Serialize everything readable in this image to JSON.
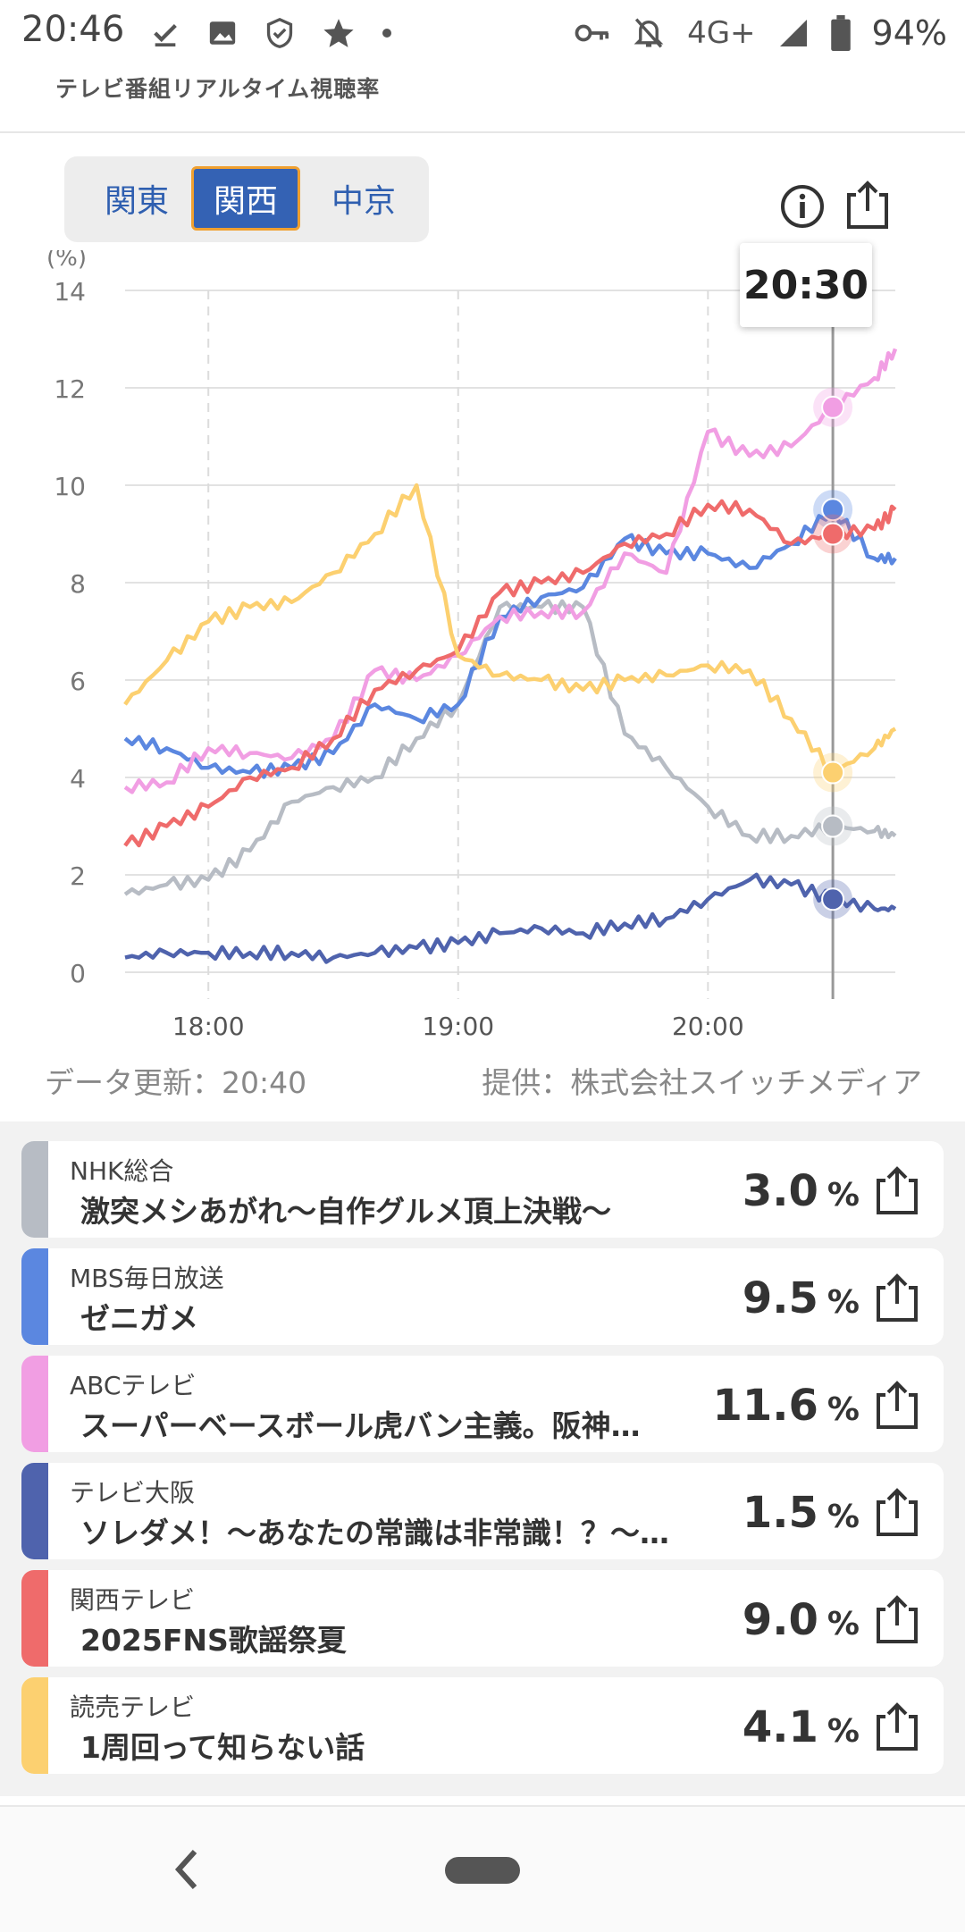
{
  "status_bar": {
    "time": "20:46",
    "network": "4G+",
    "battery": "94%",
    "left_icons": [
      "download-done-icon",
      "image-icon",
      "shield-check-icon",
      "star-icon",
      "dot-icon"
    ],
    "right_icons": [
      "vpn-key-icon",
      "notifications-off-icon",
      "signal-icon",
      "battery-icon"
    ]
  },
  "header": {
    "subtitle": "テレビ番組リアルタイム視聴率"
  },
  "region_tabs": [
    {
      "label": "関東",
      "active": false
    },
    {
      "label": "関西",
      "active": true
    },
    {
      "label": "中京",
      "active": false
    }
  ],
  "chart_tooltip": "20:30",
  "chart_data": {
    "type": "line",
    "ylabel": "(%)",
    "ylim": [
      0,
      14
    ],
    "yticks": [
      "0",
      "2",
      "4",
      "6",
      "8",
      "10",
      "12",
      "14"
    ],
    "xticks": [
      "18:00",
      "19:00",
      "20:00"
    ],
    "xlim": [
      "17:40",
      "20:45"
    ],
    "grid": true,
    "cursor_time": "20:30",
    "x": [
      "17:40",
      "17:50",
      "18:00",
      "18:10",
      "18:20",
      "18:30",
      "18:40",
      "18:50",
      "19:00",
      "19:10",
      "19:20",
      "19:30",
      "19:40",
      "19:50",
      "20:00",
      "20:10",
      "20:20",
      "20:30",
      "20:40",
      "20:45"
    ],
    "series": [
      {
        "name": "NHK総合",
        "color": "#b7bcc4",
        "values": [
          1.6,
          1.8,
          1.9,
          2.5,
          3.5,
          3.8,
          4.0,
          4.8,
          5.5,
          7.5,
          7.5,
          7.5,
          4.9,
          4.2,
          3.4,
          2.8,
          2.8,
          3.0,
          2.9,
          2.8
        ]
      },
      {
        "name": "MBS毎日放送",
        "color": "#5b87e0",
        "values": [
          4.8,
          4.6,
          4.2,
          4.1,
          4.2,
          4.5,
          5.5,
          5.2,
          5.5,
          7.3,
          7.7,
          7.9,
          8.9,
          8.6,
          8.6,
          8.3,
          8.8,
          9.5,
          8.5,
          8.5
        ]
      },
      {
        "name": "ABCテレビ",
        "color": "#f19ee3",
        "values": [
          3.8,
          3.9,
          4.6,
          4.5,
          4.4,
          4.8,
          6.2,
          6.0,
          6.5,
          7.3,
          7.4,
          7.4,
          8.6,
          8.2,
          11.1,
          10.6,
          10.8,
          11.6,
          12.2,
          12.8
        ]
      },
      {
        "name": "テレビ大阪",
        "color": "#4f63ad",
        "values": [
          0.3,
          0.4,
          0.4,
          0.4,
          0.4,
          0.3,
          0.4,
          0.5,
          0.6,
          0.8,
          0.9,
          0.8,
          1.0,
          1.1,
          1.5,
          1.9,
          1.8,
          1.5,
          1.3,
          1.3
        ]
      },
      {
        "name": "関西テレビ",
        "color": "#ef6b6b",
        "values": [
          2.6,
          3.0,
          3.4,
          4.0,
          4.2,
          4.8,
          5.8,
          6.2,
          6.6,
          7.8,
          8.0,
          8.2,
          8.8,
          9.0,
          9.6,
          9.5,
          8.8,
          9.0,
          9.1,
          9.5
        ]
      },
      {
        "name": "読売テレビ",
        "color": "#fcd070",
        "values": [
          5.5,
          6.4,
          7.2,
          7.5,
          7.6,
          8.2,
          9.0,
          10.0,
          6.5,
          6.1,
          6.0,
          5.8,
          6.0,
          6.1,
          6.3,
          6.2,
          5.2,
          4.1,
          4.6,
          5.0
        ]
      }
    ]
  },
  "meta": {
    "updated": "データ更新：20:40",
    "provider": "提供：株式会社スイッチメディア"
  },
  "channels": [
    {
      "channel": "NHK総合",
      "program": "激突メシあがれ～自作グルメ頂上決戦～",
      "value": "3.0",
      "unit": "%",
      "color": "#b7bcc4"
    },
    {
      "channel": "MBS毎日放送",
      "program": "ゼニガメ",
      "value": "9.5",
      "unit": "%",
      "color": "#5b87e0"
    },
    {
      "channel": "ABCテレビ",
      "program": "スーパーベースボール虎バン主義。阪神…",
      "value": "11.6",
      "unit": "%",
      "color": "#f19ee3"
    },
    {
      "channel": "テレビ大阪",
      "program": "ソレダメ！～あなたの常識は非常識！？～…",
      "value": "1.5",
      "unit": "%",
      "color": "#4f63ad"
    },
    {
      "channel": "関西テレビ",
      "program": "2025FNS歌謡祭夏",
      "value": "9.0",
      "unit": "%",
      "color": "#ef6b6b"
    },
    {
      "channel": "読売テレビ",
      "program": "1周回って知らない話",
      "value": "4.1",
      "unit": "%",
      "color": "#fcd070"
    }
  ],
  "nav": {
    "back_icon": "back-icon",
    "home_icon": "home-pill-icon"
  }
}
